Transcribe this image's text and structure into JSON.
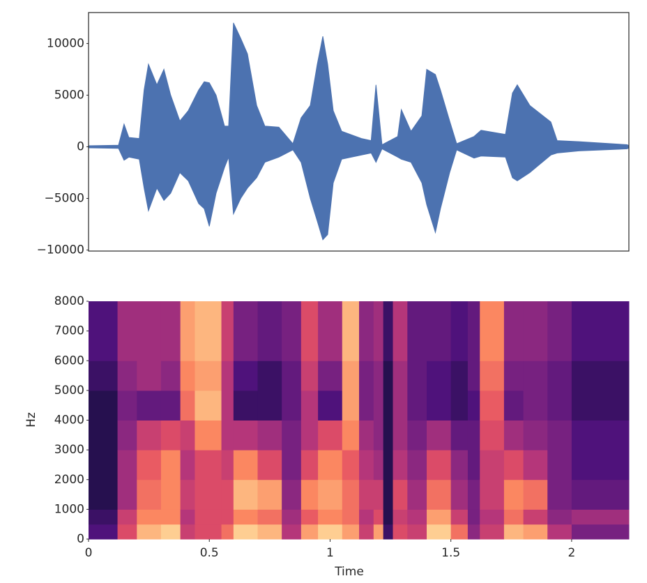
{
  "chart_data": [
    {
      "type": "waveform",
      "color": "#4c72b0",
      "x": [
        0,
        0.124,
        0.147,
        0.167,
        0.21,
        0.23,
        0.248,
        0.283,
        0.312,
        0.34,
        0.378,
        0.413,
        0.456,
        0.479,
        0.5,
        0.528,
        0.563,
        0.58,
        0.6,
        0.63,
        0.658,
        0.696,
        0.73,
        0.788,
        0.846,
        0.88,
        0.918,
        0.947,
        0.97,
        0.99,
        1.013,
        1.048,
        1.13,
        1.17,
        1.19,
        1.215,
        1.28,
        1.295,
        1.335,
        1.38,
        1.4,
        1.436,
        1.457,
        1.495,
        1.524,
        1.596,
        1.625,
        1.726,
        1.755,
        1.775,
        1.827,
        1.914,
        1.94,
        2.03,
        2.23,
        2.237
      ],
      "upper": [
        100,
        150,
        2200,
        900,
        800,
        5500,
        8000,
        6000,
        7500,
        5000,
        2500,
        3500,
        5500,
        6300,
        6200,
        5000,
        2000,
        2000,
        12000,
        10500,
        9000,
        4000,
        2000,
        1900,
        300,
        2800,
        4000,
        8000,
        10700,
        8000,
        3500,
        1500,
        800,
        600,
        6000,
        200,
        1000,
        3600,
        1500,
        3000,
        7500,
        7000,
        5500,
        2500,
        300,
        1000,
        1600,
        1200,
        5200,
        6000,
        4000,
        2400,
        600,
        500,
        200,
        100
      ],
      "lower": [
        -100,
        -150,
        -1300,
        -1000,
        -1200,
        -4000,
        -6200,
        -4000,
        -5200,
        -4500,
        -2500,
        -3300,
        -5500,
        -6000,
        -7700,
        -4500,
        -2000,
        -1000,
        -6500,
        -5000,
        -4000,
        -3000,
        -1500,
        -1000,
        -300,
        -1500,
        -5000,
        -7200,
        -9000,
        -8500,
        -3500,
        -1200,
        -800,
        -600,
        -1500,
        -200,
        -1000,
        -1200,
        -1500,
        -3500,
        -5600,
        -8300,
        -6000,
        -2500,
        -300,
        -1100,
        -900,
        -1000,
        -3000,
        -3300,
        -2500,
        -800,
        -600,
        -400,
        -200,
        -100
      ],
      "xlim": [
        0,
        2.237
      ],
      "ylim": [
        -10100,
        13000
      ],
      "yticks": [
        {
          "value": -10000,
          "label": "−10000"
        },
        {
          "value": -5000,
          "label": "−5000"
        },
        0,
        5000,
        10000
      ]
    },
    {
      "type": "spectrogram",
      "xlabel": "Time",
      "ylabel": "Hz",
      "time_edges": [
        0,
        0.12,
        0.2,
        0.3,
        0.38,
        0.44,
        0.55,
        0.6,
        0.7,
        0.8,
        0.88,
        0.95,
        1.05,
        1.12,
        1.18,
        1.22,
        1.26,
        1.32,
        1.4,
        1.5,
        1.57,
        1.62,
        1.72,
        1.8,
        1.9,
        2.0,
        2.237
      ],
      "freq_edges": [
        0,
        500,
        1000,
        2000,
        3000,
        4000,
        5000,
        6000,
        8000
      ],
      "z": [
        [
          0.25,
          0.2,
          0.15,
          0.15,
          0.15,
          0.15,
          0.2,
          0.25
        ],
        [
          0.6,
          0.55,
          0.45,
          0.45,
          0.4,
          0.35,
          0.4,
          0.45
        ],
        [
          0.85,
          0.75,
          0.7,
          0.65,
          0.55,
          0.3,
          0.45,
          0.45
        ],
        [
          0.9,
          0.75,
          0.75,
          0.75,
          0.6,
          0.3,
          0.4,
          0.45
        ],
        [
          0.55,
          0.5,
          0.55,
          0.5,
          0.55,
          0.7,
          0.75,
          0.8
        ],
        [
          0.6,
          0.6,
          0.6,
          0.6,
          0.75,
          0.85,
          0.8,
          0.85
        ],
        [
          0.7,
          0.6,
          0.6,
          0.55,
          0.5,
          0.5,
          0.5,
          0.55
        ],
        [
          0.9,
          0.75,
          0.85,
          0.75,
          0.5,
          0.2,
          0.25,
          0.35
        ],
        [
          0.85,
          0.7,
          0.8,
          0.6,
          0.45,
          0.2,
          0.2,
          0.3
        ],
        [
          0.5,
          0.45,
          0.4,
          0.35,
          0.35,
          0.3,
          0.3,
          0.35
        ],
        [
          0.8,
          0.65,
          0.75,
          0.6,
          0.5,
          0.5,
          0.55,
          0.6
        ],
        [
          0.9,
          0.75,
          0.8,
          0.75,
          0.6,
          0.25,
          0.35,
          0.45
        ],
        [
          0.8,
          0.7,
          0.7,
          0.65,
          0.75,
          0.8,
          0.8,
          0.85
        ],
        [
          0.55,
          0.5,
          0.55,
          0.5,
          0.45,
          0.35,
          0.35,
          0.4
        ],
        [
          0.8,
          0.6,
          0.55,
          0.45,
          0.4,
          0.4,
          0.4,
          0.45
        ],
        [
          0.2,
          0.15,
          0.15,
          0.15,
          0.15,
          0.15,
          0.15,
          0.2
        ],
        [
          0.6,
          0.55,
          0.6,
          0.5,
          0.45,
          0.45,
          0.45,
          0.5
        ],
        [
          0.55,
          0.5,
          0.45,
          0.4,
          0.35,
          0.3,
          0.3,
          0.3
        ],
        [
          0.9,
          0.8,
          0.7,
          0.6,
          0.45,
          0.25,
          0.25,
          0.3
        ],
        [
          0.7,
          0.55,
          0.45,
          0.4,
          0.3,
          0.2,
          0.2,
          0.25
        ],
        [
          0.4,
          0.35,
          0.35,
          0.3,
          0.3,
          0.25,
          0.3,
          0.3
        ],
        [
          0.55,
          0.5,
          0.55,
          0.55,
          0.6,
          0.65,
          0.7,
          0.75
        ],
        [
          0.85,
          0.7,
          0.75,
          0.6,
          0.45,
          0.3,
          0.35,
          0.4
        ],
        [
          0.8,
          0.55,
          0.7,
          0.5,
          0.4,
          0.35,
          0.35,
          0.4
        ],
        [
          0.5,
          0.4,
          0.35,
          0.35,
          0.35,
          0.3,
          0.3,
          0.35
        ],
        [
          0.35,
          0.45,
          0.3,
          0.25,
          0.25,
          0.2,
          0.2,
          0.25
        ]
      ],
      "xlim": [
        0,
        2.237
      ],
      "ylim": [
        0,
        8000
      ],
      "xticks": [
        0,
        0.5,
        1,
        1.5,
        2
      ],
      "yticks": [
        0,
        1000,
        2000,
        3000,
        4000,
        5000,
        6000,
        7000,
        8000
      ]
    }
  ]
}
